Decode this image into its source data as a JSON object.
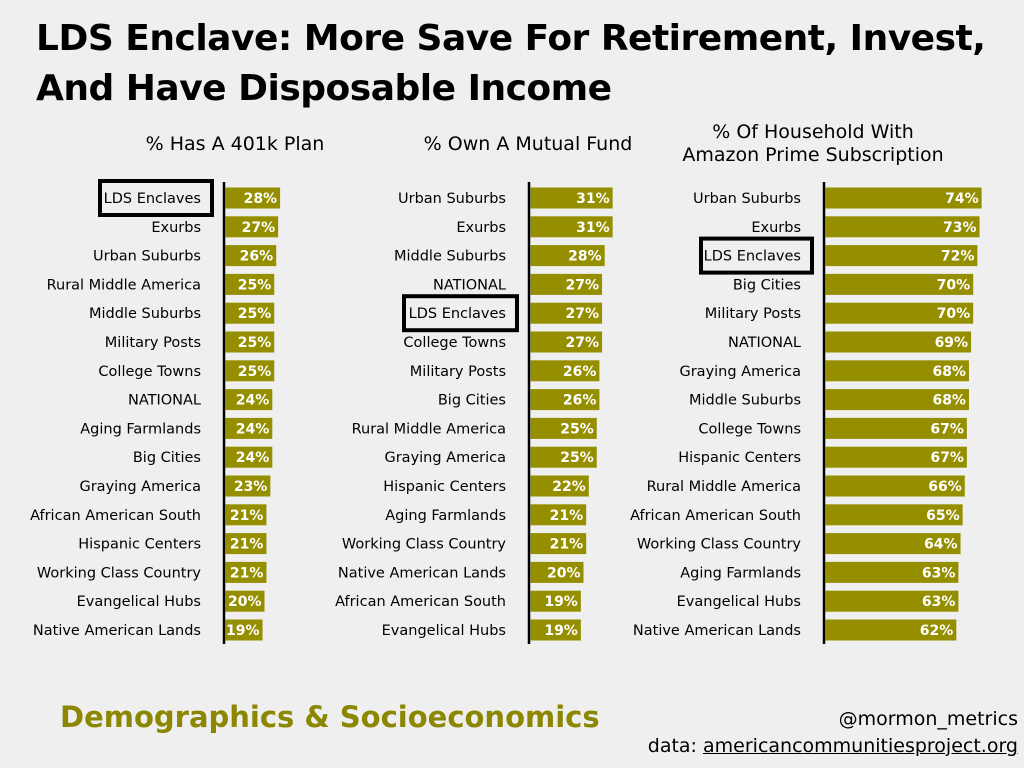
{
  "title": {
    "line1": "LDS Enclave: More Save For Retirement, Invest,",
    "line2": "And Have Disposable Income"
  },
  "colors": {
    "bar": "#958f00",
    "highlight_box": "#000000"
  },
  "chart_data": [
    {
      "type": "bar",
      "orientation": "horizontal",
      "title": "% Has A 401k Plan",
      "highlight": "LDS Enclaves",
      "categories": [
        "LDS Enclaves",
        "Exurbs",
        "Urban Suburbs",
        "Rural Middle America",
        "Middle Suburbs",
        "Military Posts",
        "College Towns",
        "NATIONAL",
        "Aging Farmlands",
        "Big Cities",
        "Graying America",
        "African American South",
        "Hispanic Centers",
        "Working Class Country",
        "Evangelical Hubs",
        "Native American Lands"
      ],
      "values": [
        28,
        27,
        26,
        25,
        25,
        25,
        25,
        24,
        24,
        24,
        23,
        21,
        21,
        21,
        20,
        19
      ],
      "labels": [
        "28%",
        "27%",
        "26%",
        "25%",
        "25%",
        "25%",
        "25%",
        "24%",
        "24%",
        "24%",
        "23%",
        "21%",
        "21%",
        "21%",
        "20%",
        "19%"
      ]
    },
    {
      "type": "bar",
      "orientation": "horizontal",
      "title": "% Own A Mutual Fund",
      "highlight": "LDS Enclaves",
      "categories": [
        "Urban Suburbs",
        "Exurbs",
        "Middle Suburbs",
        "NATIONAL",
        "LDS Enclaves",
        "College Towns",
        "Military Posts",
        "Big Cities",
        "Rural Middle America",
        "Graying America",
        "Hispanic Centers",
        "Aging Farmlands",
        "Working Class Country",
        "Native American Lands",
        "African American South",
        "Evangelical Hubs"
      ],
      "values": [
        31,
        31,
        28,
        27,
        27,
        27,
        26,
        26,
        25,
        25,
        22,
        21,
        21,
        20,
        19,
        19
      ],
      "labels": [
        "31%",
        "31%",
        "28%",
        "27%",
        "27%",
        "27%",
        "26%",
        "26%",
        "25%",
        "25%",
        "22%",
        "21%",
        "21%",
        "20%",
        "19%",
        "19%"
      ]
    },
    {
      "type": "bar",
      "orientation": "horizontal",
      "title": "% Of Household With",
      "title_line2": "Amazon Prime Subscription",
      "highlight": "LDS Enclaves",
      "categories": [
        "Urban Suburbs",
        "Exurbs",
        "LDS Enclaves",
        "Big Cities",
        "Military Posts",
        "NATIONAL",
        "Graying America",
        "Middle Suburbs",
        "College Towns",
        "Hispanic Centers",
        "Rural Middle America",
        "African American South",
        "Working Class Country",
        "Aging Farmlands",
        "Evangelical Hubs",
        "Native American Lands"
      ],
      "values": [
        74,
        73,
        72,
        70,
        70,
        69,
        68,
        68,
        67,
        67,
        66,
        65,
        64,
        63,
        63,
        62
      ],
      "labels": [
        "74%",
        "73%",
        "72%",
        "70%",
        "70%",
        "69%",
        "68%",
        "68%",
        "67%",
        "67%",
        "66%",
        "65%",
        "64%",
        "63%",
        "63%",
        "62%"
      ]
    }
  ],
  "footer": {
    "section": "Demographics & Socioeconomics",
    "handle": "@mormon_metrics",
    "data_prefix": "data: ",
    "source": "americancommunitiesproject.org"
  }
}
